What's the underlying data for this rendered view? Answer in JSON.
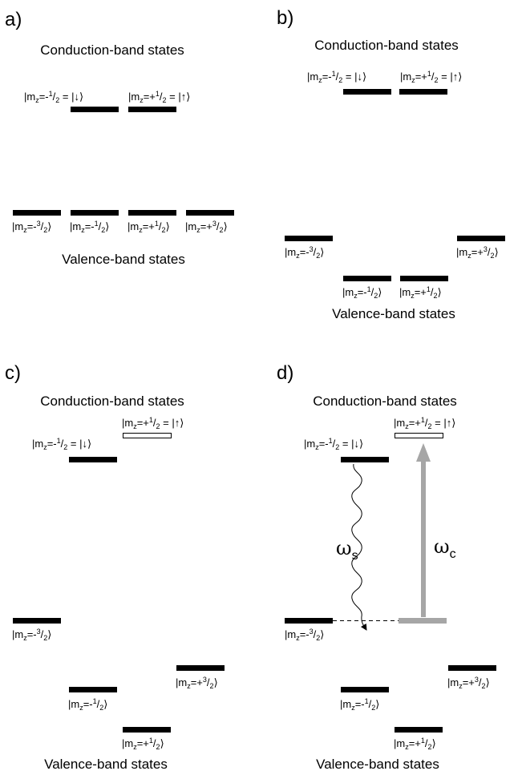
{
  "panels": {
    "a": {
      "label": "a)",
      "conduction_title": "Conduction-band states",
      "valence_title": "Valence-band states"
    },
    "b": {
      "label": "b)",
      "conduction_title": "Conduction-band states",
      "valence_title": "Valence-band states"
    },
    "c": {
      "label": "c)",
      "conduction_title": "Conduction-band states",
      "valence_title": "Valence-band states"
    },
    "d": {
      "label": "d)",
      "conduction_title": "Conduction-band states",
      "valence_title": "Valence-band states"
    }
  },
  "states": {
    "m_prefix": "|m",
    "m_sub": "z",
    "eq_minus": "=-",
    "eq_plus": "=+",
    "one": "1",
    "three": "3",
    "slash_two": "/",
    "two": "2",
    "ket": "⟩",
    "down_ket": " = |↓⟩",
    "up_ket": " = |↑⟩"
  },
  "transitions": {
    "spontaneous_symbol": "ω",
    "spontaneous_sub": "s",
    "coupling_symbol": "ω",
    "coupling_sub": "c"
  },
  "colors": {
    "level": "#000000",
    "coupling_arrow": "#a6a6a6",
    "open_level_fill": "#ffffff"
  }
}
